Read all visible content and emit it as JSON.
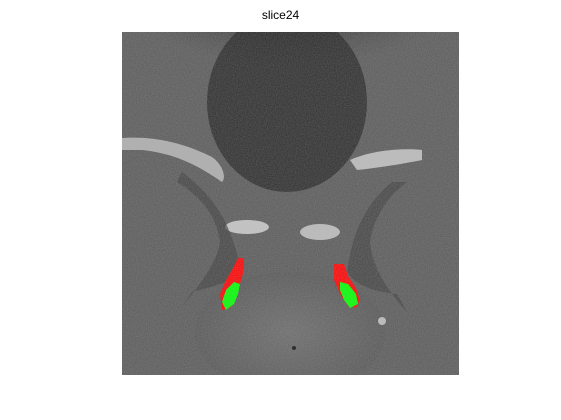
{
  "figure": {
    "title": "slice24"
  },
  "image": {
    "description_icon": "mri-slice-image",
    "overlay_colors": {
      "region_outer": "#ff0000",
      "region_inner": "#00ff00"
    }
  }
}
